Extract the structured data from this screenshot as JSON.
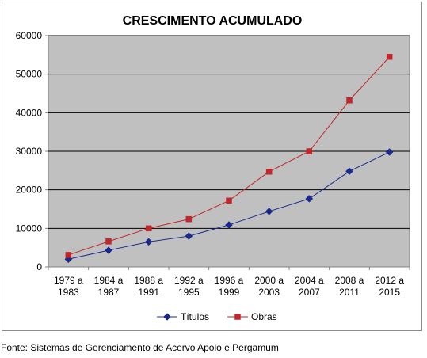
{
  "chart_data": {
    "type": "line",
    "title": "CRESCIMENTO ACUMULADO",
    "categories": [
      [
        "1979 a",
        "1983"
      ],
      [
        "1984 a",
        "1987"
      ],
      [
        "1988 a",
        "1991"
      ],
      [
        "1992 a",
        "1995"
      ],
      [
        "1996 a",
        "1999"
      ],
      [
        "2000 a",
        "2003"
      ],
      [
        "2004 a",
        "2007"
      ],
      [
        "2008 a",
        "2011"
      ],
      [
        "2012 a",
        "2015"
      ]
    ],
    "series": [
      {
        "name": "Títulos",
        "color": "#1a2a8c",
        "marker": "diamond",
        "values": [
          2000,
          4300,
          6500,
          8000,
          10900,
          14400,
          17700,
          24800,
          29800
        ]
      },
      {
        "name": "Obras",
        "color": "#c0272d",
        "marker": "square",
        "values": [
          3100,
          6600,
          10000,
          12400,
          17200,
          24700,
          30000,
          43200,
          54500
        ]
      }
    ],
    "ylim": [
      0,
      60000
    ],
    "yticks": [
      0,
      10000,
      20000,
      30000,
      40000,
      50000,
      60000
    ],
    "grid": true,
    "plot_background": "#c0c0c0",
    "legend_position": "bottom"
  },
  "source_caption": "Fonte: Sistemas de Gerenciamento de Acervo Apolo e Pergamum"
}
